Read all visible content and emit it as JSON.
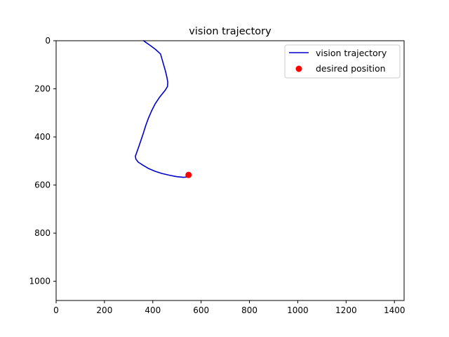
{
  "chart_data": {
    "type": "line",
    "title": "vision trajectory",
    "xlabel": "",
    "ylabel": "",
    "xlim": [
      0,
      1440
    ],
    "ylim": [
      1080,
      0
    ],
    "y_inverted": true,
    "grid": false,
    "legend_position": "upper-right",
    "x_ticks": [
      0,
      200,
      400,
      600,
      800,
      1000,
      1200,
      1400
    ],
    "y_ticks": [
      0,
      200,
      400,
      600,
      800,
      1000
    ],
    "series": [
      {
        "name": "vision trajectory",
        "kind": "line",
        "color": "#0000cc",
        "points": [
          [
            362,
            0
          ],
          [
            370,
            6
          ],
          [
            390,
            20
          ],
          [
            410,
            35
          ],
          [
            432,
            55
          ],
          [
            442,
            90
          ],
          [
            452,
            125
          ],
          [
            458,
            150
          ],
          [
            462,
            172
          ],
          [
            461,
            190
          ],
          [
            452,
            205
          ],
          [
            440,
            220
          ],
          [
            428,
            235
          ],
          [
            410,
            262
          ],
          [
            395,
            292
          ],
          [
            382,
            322
          ],
          [
            371,
            352
          ],
          [
            360,
            387
          ],
          [
            349,
            420
          ],
          [
            338,
            452
          ],
          [
            328,
            480
          ],
          [
            330,
            492
          ],
          [
            340,
            505
          ],
          [
            360,
            518
          ],
          [
            384,
            532
          ],
          [
            410,
            543
          ],
          [
            438,
            552
          ],
          [
            468,
            559
          ],
          [
            498,
            565
          ],
          [
            528,
            568
          ],
          [
            545,
            566
          ],
          [
            548,
            560
          ]
        ]
      },
      {
        "name": "desired position",
        "kind": "scatter",
        "color": "#ff0000",
        "points": [
          [
            548,
            558
          ]
        ]
      }
    ]
  }
}
